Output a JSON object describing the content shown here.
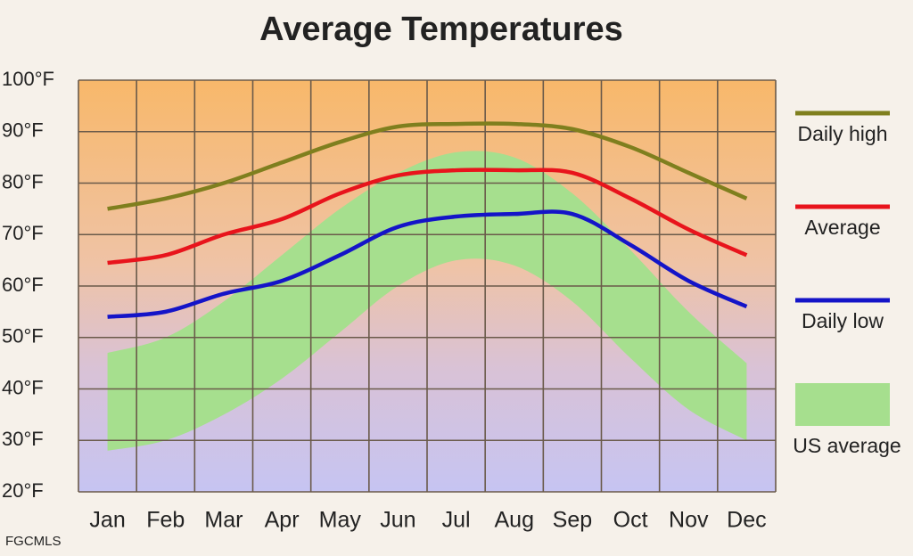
{
  "chart_data": {
    "type": "line",
    "title": "Average Temperatures",
    "credit": "FGCMLS",
    "categories": [
      "Jan",
      "Feb",
      "Mar",
      "Apr",
      "May",
      "Jun",
      "Jul",
      "Aug",
      "Sep",
      "Oct",
      "Nov",
      "Dec"
    ],
    "series": [
      {
        "name": "Daily high",
        "color": "#7f7f1e",
        "values": [
          75,
          77,
          80,
          84,
          88,
          91,
          91.5,
          91.5,
          90.5,
          87,
          82,
          77
        ]
      },
      {
        "name": "Average",
        "color": "#e8141c",
        "values": [
          64.5,
          66,
          70,
          73,
          78,
          81.5,
          82.5,
          82.5,
          82,
          77,
          71,
          66
        ]
      },
      {
        "name": "Daily low",
        "color": "#1414c8",
        "values": [
          54,
          55,
          58.5,
          61,
          66,
          71.5,
          73.5,
          74,
          74,
          68,
          61,
          56
        ]
      }
    ],
    "band": {
      "name": "US average",
      "color": "#a6df8e",
      "high": [
        47,
        50,
        57,
        66,
        75,
        82,
        86,
        85,
        78,
        67,
        55,
        45
      ],
      "low": [
        28,
        30,
        35,
        42,
        51,
        60,
        65,
        64,
        57,
        46,
        36,
        30
      ]
    },
    "ylim": [
      20,
      100
    ],
    "yticks": [
      {
        "value": 20,
        "label": "20°F"
      },
      {
        "value": 30,
        "label": "30°F"
      },
      {
        "value": 40,
        "label": "40°F"
      },
      {
        "value": 50,
        "label": "50°F"
      },
      {
        "value": 60,
        "label": "60°F"
      },
      {
        "value": 70,
        "label": "70°F"
      },
      {
        "value": 80,
        "label": "80°F"
      },
      {
        "value": 90,
        "label": "90°F"
      },
      {
        "value": 100,
        "label": "100°F"
      }
    ],
    "grid": true
  }
}
